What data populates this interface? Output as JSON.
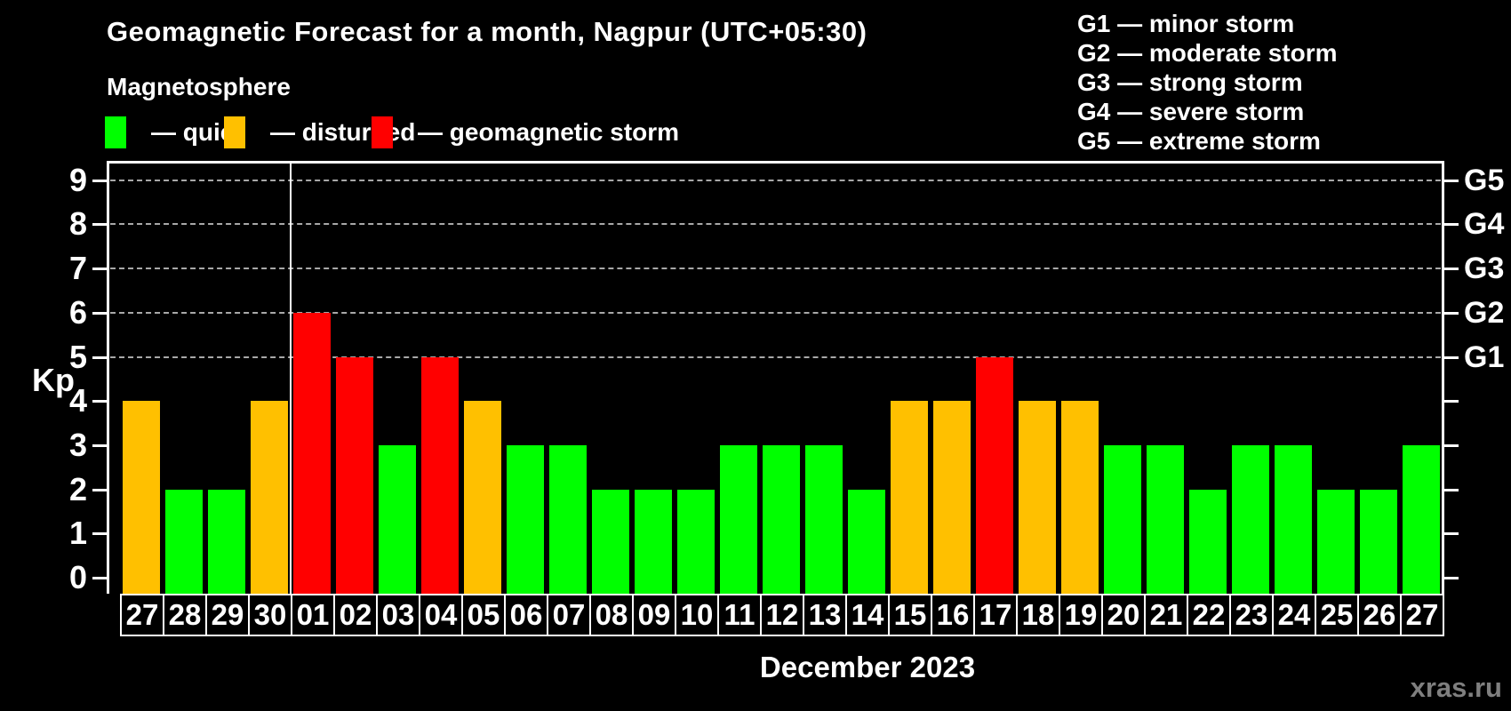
{
  "header": {
    "title": "Geomagnetic Forecast for a month, Nagpur (UTC+05:30)",
    "subtitle": "Magnetosphere"
  },
  "legend": {
    "items": [
      {
        "key": "quiet",
        "label": "— quiet",
        "color": "#00ff00"
      },
      {
        "key": "disturbed",
        "label": "— disturbed",
        "color": "#ffc000"
      },
      {
        "key": "storm",
        "label": "— geomagnetic storm",
        "color": "#ff0000"
      }
    ]
  },
  "g_legend": {
    "lines": [
      "G1 — minor storm",
      "G2 — moderate storm",
      "G3 — strong storm",
      "G4 — severe storm",
      "G5 — extreme storm"
    ]
  },
  "chart_data": {
    "type": "bar",
    "title": "Geomagnetic Forecast for a month, Nagpur (UTC+05:30)",
    "ylabel": "Kp",
    "xlabel": "December 2023",
    "ylim": [
      0,
      9
    ],
    "y_ticks": [
      0,
      1,
      2,
      3,
      4,
      5,
      6,
      7,
      8,
      9
    ],
    "grid_levels_kp": [
      5,
      6,
      7,
      8,
      9
    ],
    "right_axis_labels": [
      {
        "label": "G1",
        "kp": 5
      },
      {
        "label": "G2",
        "kp": 6
      },
      {
        "label": "G3",
        "kp": 7
      },
      {
        "label": "G4",
        "kp": 8
      },
      {
        "label": "G5",
        "kp": 9
      }
    ],
    "month_boundary_after_index": 3,
    "categories": [
      "27",
      "28",
      "29",
      "30",
      "01",
      "02",
      "03",
      "04",
      "05",
      "06",
      "07",
      "08",
      "09",
      "10",
      "11",
      "12",
      "13",
      "14",
      "15",
      "16",
      "17",
      "18",
      "19",
      "20",
      "21",
      "22",
      "23",
      "24",
      "25",
      "26",
      "27"
    ],
    "bars": [
      {
        "day": "27",
        "kp": 4,
        "status": "disturbed"
      },
      {
        "day": "28",
        "kp": 2,
        "status": "quiet"
      },
      {
        "day": "29",
        "kp": 2,
        "status": "quiet"
      },
      {
        "day": "30",
        "kp": 4,
        "status": "disturbed"
      },
      {
        "day": "01",
        "kp": 6,
        "status": "storm"
      },
      {
        "day": "02",
        "kp": 5,
        "status": "storm"
      },
      {
        "day": "03",
        "kp": 3,
        "status": "quiet"
      },
      {
        "day": "04",
        "kp": 5,
        "status": "storm"
      },
      {
        "day": "05",
        "kp": 4,
        "status": "disturbed"
      },
      {
        "day": "06",
        "kp": 3,
        "status": "quiet"
      },
      {
        "day": "07",
        "kp": 3,
        "status": "quiet"
      },
      {
        "day": "08",
        "kp": 2,
        "status": "quiet"
      },
      {
        "day": "09",
        "kp": 2,
        "status": "quiet"
      },
      {
        "day": "10",
        "kp": 2,
        "status": "quiet"
      },
      {
        "day": "11",
        "kp": 3,
        "status": "quiet"
      },
      {
        "day": "12",
        "kp": 3,
        "status": "quiet"
      },
      {
        "day": "13",
        "kp": 3,
        "status": "quiet"
      },
      {
        "day": "14",
        "kp": 2,
        "status": "quiet"
      },
      {
        "day": "15",
        "kp": 4,
        "status": "disturbed"
      },
      {
        "day": "16",
        "kp": 4,
        "status": "disturbed"
      },
      {
        "day": "17",
        "kp": 5,
        "status": "storm"
      },
      {
        "day": "18",
        "kp": 4,
        "status": "disturbed"
      },
      {
        "day": "19",
        "kp": 4,
        "status": "disturbed"
      },
      {
        "day": "20",
        "kp": 3,
        "status": "quiet"
      },
      {
        "day": "21",
        "kp": 3,
        "status": "quiet"
      },
      {
        "day": "22",
        "kp": 2,
        "status": "quiet"
      },
      {
        "day": "23",
        "kp": 3,
        "status": "quiet"
      },
      {
        "day": "24",
        "kp": 3,
        "status": "quiet"
      },
      {
        "day": "25",
        "kp": 2,
        "status": "quiet"
      },
      {
        "day": "26",
        "kp": 2,
        "status": "quiet"
      },
      {
        "day": "27",
        "kp": 3,
        "status": "quiet"
      }
    ],
    "legend_position": "top-left",
    "grid": "dashed horizontal at Kp 5-9 only"
  },
  "colors": {
    "quiet": "#00ff00",
    "disturbed": "#ffc000",
    "storm": "#ff0000",
    "background": "#000000",
    "axis": "#ffffff",
    "grid": "#a8a8a8",
    "watermark": "#7f7f7f"
  },
  "watermark": "xras.ru"
}
